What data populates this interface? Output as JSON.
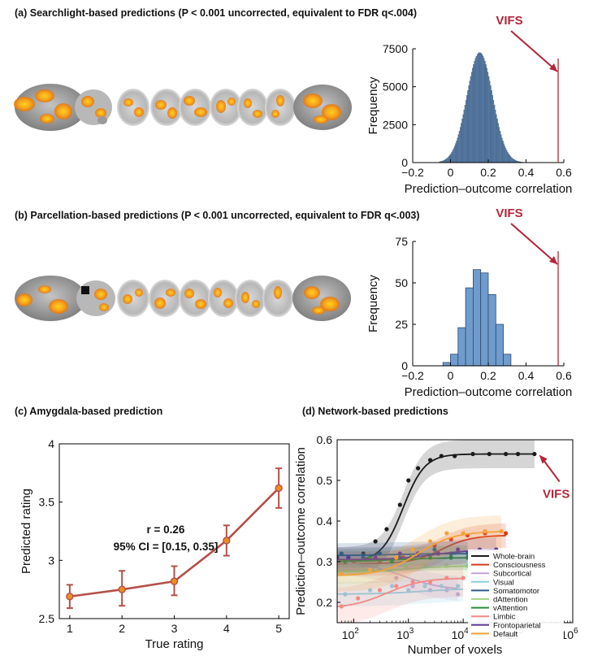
{
  "panels": {
    "a_title": "(a) Searchlight-based predictions (P < 0.001 uncorrected, equivalent to FDR q<.004)",
    "b_title": "(b) Parcellation-based predictions (P < 0.001 uncorrected, equivalent to FDR q<.003)",
    "c_title": "(c) Amygdala-based prediction",
    "d_title": "(d) Network-based predictions"
  },
  "colors": {
    "accent": "#b5263a",
    "hist_a_fill": "#5b7fa8",
    "hist_b_fill": "#6f9ccc",
    "line_c": "#b5504a",
    "marker_c": "#f08c1e"
  },
  "chart_data": [
    {
      "id": "hist_a",
      "type": "bar",
      "title": "",
      "xlabel": "Prediction–outcome correlation",
      "ylabel": "Frequency",
      "xlim": [
        -0.2,
        0.6
      ],
      "ylim": [
        0,
        7500
      ],
      "xticks": [
        "-0.2",
        "0",
        "0.2",
        "0.4",
        "0.6"
      ],
      "yticks": [
        "0",
        "2500",
        "5000",
        "7500"
      ],
      "distribution": {
        "mean": 0.155,
        "sd": 0.068,
        "peak": 7250,
        "bin_width": 0.005,
        "from": -0.06,
        "to": 0.4
      },
      "annotation": {
        "label": "VIFS",
        "x": 0.57
      }
    },
    {
      "id": "hist_b",
      "type": "bar",
      "title": "",
      "xlabel": "Prediction–outcome correlation",
      "ylabel": "Frequency",
      "xlim": [
        -0.2,
        0.6
      ],
      "ylim": [
        0,
        75
      ],
      "xticks": [
        "-0.2",
        "0",
        "0.2",
        "0.4",
        "0.6"
      ],
      "yticks": [
        "0",
        "25",
        "50",
        "75"
      ],
      "bin_width": 0.04,
      "bins": [
        -0.04,
        0.0,
        0.04,
        0.08,
        0.12,
        0.16,
        0.2,
        0.24,
        0.28
      ],
      "values": [
        2,
        7,
        23,
        47,
        58,
        56,
        43,
        25,
        7
      ],
      "annotation": {
        "label": "VIFS",
        "x": 0.57
      }
    },
    {
      "id": "amygdala",
      "type": "line",
      "title": "",
      "xlabel": "True rating",
      "ylabel": "Predicted rating",
      "x": [
        1,
        2,
        3,
        4,
        5
      ],
      "y": [
        2.69,
        2.75,
        2.82,
        3.17,
        3.62
      ],
      "err_low": [
        2.59,
        2.61,
        2.7,
        3.04,
        3.45
      ],
      "err_high": [
        2.79,
        2.91,
        2.95,
        3.3,
        3.79
      ],
      "xlim": [
        0.8,
        5.2
      ],
      "ylim": [
        2.5,
        4.0
      ],
      "xticks": [
        "1",
        "2",
        "3",
        "4",
        "5"
      ],
      "yticks": [
        "2.5",
        "3",
        "3.5",
        "4"
      ],
      "annotations": [
        "r = 0.26",
        "95% CI = [0.15, 0.35]"
      ]
    },
    {
      "id": "networks",
      "type": "line",
      "title": "",
      "xlabel": "Number of voxels",
      "ylabel": "Prediction–outcome correlation",
      "xscale": "log",
      "xlim": [
        50,
        1000000
      ],
      "ylim": [
        0.15,
        0.6
      ],
      "xticks": [
        {
          "v": 100,
          "base": "10",
          "exp": "2"
        },
        {
          "v": 1000,
          "base": "10",
          "exp": "3"
        },
        {
          "v": 10000,
          "base": "10",
          "exp": "4"
        },
        {
          "v": 100000,
          "base": "10",
          "exp": "5"
        },
        {
          "v": 1000000,
          "base": "10",
          "exp": "6"
        }
      ],
      "yticks": [
        "0.2",
        "0.3",
        "0.4",
        "0.5",
        "0.6"
      ],
      "annotation": {
        "label": "VIFS",
        "x": 220000,
        "y": 0.565
      },
      "series": [
        {
          "name": "Whole-brain",
          "color": "#1a1a1a",
          "bottom": 0.3,
          "top": 0.565,
          "x0": 800,
          "k": 2.2,
          "band": 0.035,
          "x": [
            50,
            200000.0
          ],
          "pts": [
            [
              50,
              0.31
            ],
            [
              80,
              0.31
            ],
            [
              150,
              0.32
            ],
            [
              250,
              0.35
            ],
            [
              400,
              0.38
            ],
            [
              700,
              0.44
            ],
            [
              1000,
              0.5
            ],
            [
              1500,
              0.53
            ],
            [
              2500,
              0.55
            ],
            [
              4000,
              0.56
            ],
            [
              7000,
              0.56
            ],
            [
              15000,
              0.565
            ],
            [
              30000,
              0.565
            ],
            [
              60000,
              0.565
            ],
            [
              100000,
              0.565
            ],
            [
              200000,
              0.565
            ]
          ]
        },
        {
          "name": "Consciousness",
          "color": "#d63a1c",
          "bottom": 0.295,
          "top": 0.365,
          "x0": 4000,
          "k": 1.6,
          "band": 0.03,
          "x": [
            50,
            60000
          ],
          "pts": [
            [
              100,
              0.3
            ],
            [
              300,
              0.3
            ],
            [
              800,
              0.31
            ],
            [
              1500,
              0.32
            ],
            [
              3000,
              0.34
            ],
            [
              6000,
              0.355
            ],
            [
              12000,
              0.365
            ],
            [
              25000,
              0.37
            ],
            [
              60000,
              0.37
            ]
          ]
        },
        {
          "name": "Subcortical",
          "color": "#c3a3d6",
          "bottom": 0.3,
          "top": 0.23,
          "x0": 800,
          "k": 1.2,
          "band": 0.03,
          "x": [
            50,
            8000
          ],
          "pts": [
            [
              60,
              0.3
            ],
            [
              150,
              0.29
            ],
            [
              300,
              0.28
            ],
            [
              600,
              0.26
            ],
            [
              1200,
              0.24
            ],
            [
              2500,
              0.23
            ],
            [
              5000,
              0.23
            ],
            [
              8000,
              0.22
            ]
          ]
        },
        {
          "name": "Visual",
          "color": "#8ccde0",
          "bottom": 0.22,
          "top": 0.235,
          "x0": 2000,
          "k": 1.0,
          "band": 0.03,
          "x": [
            50,
            10000
          ],
          "pts": [
            [
              70,
              0.22
            ],
            [
              200,
              0.23
            ],
            [
              500,
              0.24
            ],
            [
              1000,
              0.23
            ],
            [
              2000,
              0.24
            ],
            [
              4000,
              0.24
            ],
            [
              8000,
              0.24
            ]
          ]
        },
        {
          "name": "Somatomotor",
          "color": "#2a5e8f",
          "bottom": 0.315,
          "top": 0.32,
          "x0": 500,
          "k": 1.0,
          "band": 0.03,
          "x": [
            50,
            12000
          ],
          "pts": [
            [
              60,
              0.32
            ],
            [
              150,
              0.31
            ],
            [
              300,
              0.32
            ],
            [
              700,
              0.31
            ],
            [
              1500,
              0.32
            ],
            [
              3000,
              0.33
            ],
            [
              6000,
              0.32
            ],
            [
              12000,
              0.32
            ]
          ]
        },
        {
          "name": "dAttention",
          "color": "#a7d689",
          "bottom": 0.275,
          "top": 0.29,
          "x0": 1000,
          "k": 1.0,
          "band": 0.03,
          "x": [
            50,
            15000
          ],
          "pts": [
            [
              60,
              0.27
            ],
            [
              150,
              0.28
            ],
            [
              400,
              0.28
            ],
            [
              900,
              0.29
            ],
            [
              2000,
              0.29
            ],
            [
              5000,
              0.29
            ],
            [
              12000,
              0.29
            ]
          ]
        },
        {
          "name": "vAttention",
          "color": "#2c8a3a",
          "bottom": 0.3,
          "top": 0.31,
          "x0": 600,
          "k": 1.0,
          "band": 0.03,
          "x": [
            50,
            12000
          ],
          "pts": [
            [
              70,
              0.3
            ],
            [
              200,
              0.31
            ],
            [
              500,
              0.3
            ],
            [
              1100,
              0.31
            ],
            [
              2500,
              0.31
            ],
            [
              6000,
              0.31
            ],
            [
              12000,
              0.31
            ]
          ]
        },
        {
          "name": "Limbic",
          "color": "#f28a84",
          "bottom": 0.185,
          "top": 0.26,
          "x0": 400,
          "k": 1.3,
          "band": 0.045,
          "x": [
            50,
            10000
          ],
          "pts": [
            [
              60,
              0.19
            ],
            [
              120,
              0.21
            ],
            [
              300,
              0.23
            ],
            [
              600,
              0.24
            ],
            [
              1200,
              0.25
            ],
            [
              2500,
              0.25
            ],
            [
              5000,
              0.26
            ],
            [
              10000,
              0.26
            ]
          ]
        },
        {
          "name": "Frontoparietal",
          "color": "#5b3c96",
          "bottom": 0.305,
          "top": 0.33,
          "x0": 3000,
          "k": 1.2,
          "band": 0.03,
          "x": [
            50,
            40000
          ],
          "pts": [
            [
              80,
              0.31
            ],
            [
              250,
              0.31
            ],
            [
              700,
              0.32
            ],
            [
              1500,
              0.32
            ],
            [
              3500,
              0.32
            ],
            [
              8000,
              0.33
            ],
            [
              20000,
              0.33
            ],
            [
              40000,
              0.33
            ]
          ]
        },
        {
          "name": "Default",
          "color": "#f2a23a",
          "bottom": 0.265,
          "top": 0.375,
          "x0": 1500,
          "k": 1.3,
          "band": 0.04,
          "x": [
            50,
            50000
          ],
          "pts": [
            [
              60,
              0.27
            ],
            [
              200,
              0.28
            ],
            [
              600,
              0.31
            ],
            [
              1200,
              0.33
            ],
            [
              2500,
              0.35
            ],
            [
              5000,
              0.37
            ],
            [
              10000,
              0.37
            ],
            [
              25000,
              0.375
            ],
            [
              50000,
              0.375
            ]
          ]
        }
      ]
    }
  ]
}
